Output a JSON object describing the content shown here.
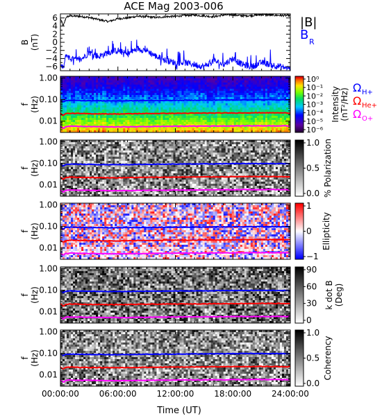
{
  "chart_data": {
    "title": "ACE Mag 2003-006",
    "xlabel": "Time (UT)",
    "x_ticks": [
      "00:00:00",
      "06:00:00",
      "12:00:00",
      "18:00:00",
      "24:00:00"
    ],
    "x_range_hours": [
      0,
      24
    ],
    "time_series_panel": {
      "type": "line",
      "ylabel": "B (nT)",
      "ylim": [
        -7,
        7
      ],
      "y_ticks": [
        6,
        4,
        2,
        0,
        -2,
        -4,
        -6
      ],
      "y_tick_labels": [
        "6",
        "4",
        "2",
        "0",
        "−2",
        "−4",
        "−6"
      ],
      "legend_b": "|B|",
      "legend_br": "B",
      "legend_br_subscript": "R",
      "series": [
        {
          "name": "|B|",
          "color": "#000000",
          "x_hours": [
            0,
            0.3,
            0.6,
            1,
            2,
            3,
            4,
            5,
            6,
            7,
            8,
            9,
            10,
            11,
            12,
            13,
            14,
            15,
            16,
            17,
            18,
            19,
            20,
            21,
            22,
            23,
            24
          ],
          "values": [
            5.8,
            4.0,
            6.2,
            6.5,
            6.4,
            6.1,
            5.6,
            5.1,
            5.8,
            6.0,
            6.4,
            6.3,
            6.1,
            6.3,
            6.4,
            6.6,
            6.7,
            6.5,
            6.3,
            6.7,
            6.8,
            6.5,
            6.6,
            6.8,
            6.7,
            6.6,
            6.6
          ]
        },
        {
          "name": "B_R",
          "color": "#0000ff",
          "x_hours": [
            0,
            0.3,
            0.6,
            1,
            2,
            3,
            4,
            5,
            6,
            7,
            8,
            9,
            10,
            11,
            12,
            13,
            14,
            15,
            16,
            17,
            18,
            19,
            20,
            21,
            22,
            23,
            24
          ],
          "values": [
            -5.5,
            -6.5,
            -3.0,
            -4.0,
            -4.5,
            -2.5,
            -3.5,
            -2.5,
            -2.0,
            -3.0,
            -1.5,
            -2.0,
            -3.5,
            -4.5,
            -5.0,
            -5.0,
            -5.5,
            -6.0,
            -4.5,
            -5.5,
            -4.0,
            -5.5,
            -6.0,
            -5.0,
            -5.5,
            -6.0,
            -6.5
          ]
        }
      ]
    },
    "spectrogram_panels": [
      {
        "name": "intensity",
        "type": "heatmap",
        "ylabel": "f (Hz)",
        "colormap": "rainbow",
        "cbar_label": "Intensity (nT²/Hz)",
        "cbar_ticks": [
          "10⁰",
          "10⁻¹",
          "10⁻²",
          "10⁻³",
          "10⁻⁴",
          "10⁻⁵",
          "10⁻⁶"
        ],
        "cbar_range": [
          -6,
          0
        ],
        "cbar_log": true,
        "legend": [
          {
            "label": "Ω",
            "subscript": "H+",
            "color": "#0000ff"
          },
          {
            "label": "Ω",
            "subscript": "He+",
            "color": "#ff0000"
          },
          {
            "label": "Ω",
            "subscript": "O+",
            "color": "#ff00ff"
          }
        ]
      },
      {
        "name": "polarization",
        "type": "heatmap",
        "ylabel": "f (Hz)",
        "colormap": "gray",
        "cbar_label": "% Polarization",
        "cbar_ticks": [
          "1.0",
          "0.5",
          "0.0"
        ],
        "cbar_range": [
          0,
          1
        ]
      },
      {
        "name": "ellipticity",
        "type": "heatmap",
        "ylabel": "f (Hz)",
        "colormap": "bwr",
        "cbar_label": "Ellipticity",
        "cbar_ticks": [
          "1",
          "0",
          "−1"
        ],
        "cbar_range": [
          -1,
          1
        ]
      },
      {
        "name": "kdotb",
        "type": "heatmap",
        "ylabel": "f (Hz)",
        "colormap": "gray",
        "cbar_label": "k dot B (Deg)",
        "cbar_ticks": [
          "90",
          "60",
          "30",
          "0"
        ],
        "cbar_range": [
          0,
          90
        ]
      },
      {
        "name": "coherency",
        "type": "heatmap",
        "ylabel": "f (Hz)",
        "colormap": "gray",
        "cbar_label": "Coherency",
        "cbar_ticks": [
          "1.0",
          "0.5",
          "0.0"
        ],
        "cbar_range": [
          0,
          1
        ]
      }
    ],
    "frequency_axis": {
      "log": true,
      "ylim_hz": [
        0.003,
        1.2
      ],
      "y_ticks_hz": [
        1.0,
        0.1,
        0.01
      ],
      "y_tick_labels": [
        "1.00",
        "0.10",
        "0.01"
      ]
    },
    "gyrofrequency_lines": [
      {
        "name": "H+",
        "color": "#0000ff",
        "x_hours": [
          0,
          0.3,
          0.5,
          1,
          3,
          6,
          9,
          12,
          15,
          18,
          21,
          24
        ],
        "f_hz": [
          0.092,
          0.075,
          0.088,
          0.092,
          0.089,
          0.087,
          0.09,
          0.092,
          0.094,
          0.097,
          0.098,
          0.097
        ]
      },
      {
        "name": "He+",
        "color": "#ff0000",
        "x_hours": [
          0,
          0.3,
          0.5,
          1,
          3,
          6,
          9,
          12,
          15,
          18,
          21,
          24
        ],
        "f_hz": [
          0.023,
          0.018,
          0.022,
          0.023,
          0.022,
          0.0215,
          0.0225,
          0.023,
          0.0235,
          0.024,
          0.0245,
          0.024
        ]
      },
      {
        "name": "O+",
        "color": "#ff00ff",
        "x_hours": [
          0,
          0.3,
          0.5,
          1,
          3,
          6,
          9,
          12,
          15,
          18,
          21,
          24
        ],
        "f_hz": [
          0.0058,
          0.0045,
          0.0055,
          0.0058,
          0.0056,
          0.0054,
          0.0056,
          0.0058,
          0.0059,
          0.006,
          0.0061,
          0.006
        ]
      }
    ]
  }
}
